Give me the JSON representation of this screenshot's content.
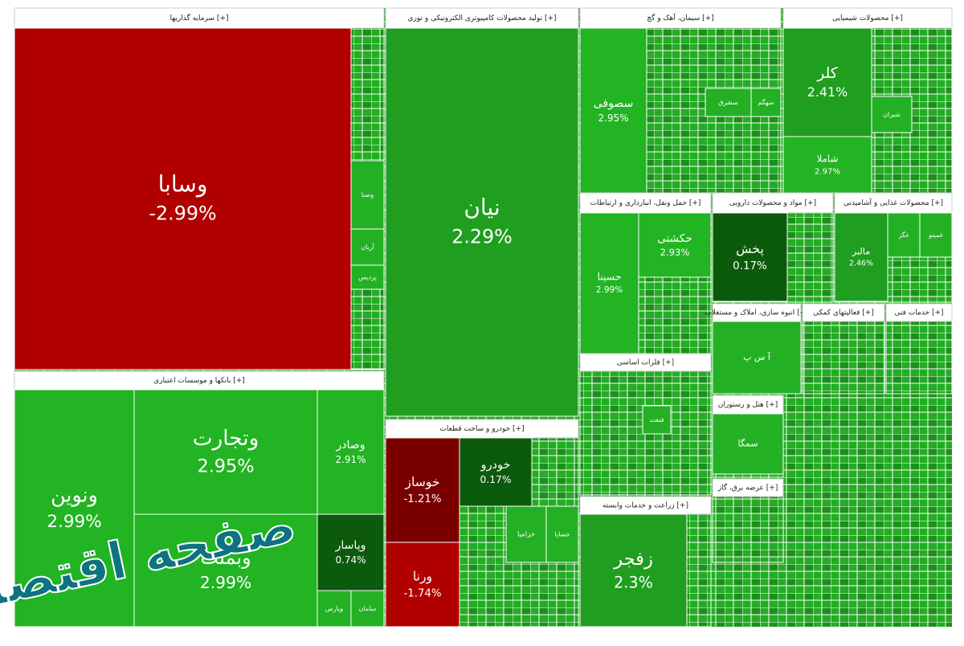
{
  "chart_data": {
    "type": "treemap",
    "watermark": "صفحه اقتصاد",
    "sectors": [
      {
        "name": "سرمایه گذاریها [+]",
        "tiles": [
          {
            "name": "وسابا",
            "value": -2.99,
            "value_label": "-2.99%"
          },
          {
            "name": "وصنا"
          },
          {
            "name": "آریان"
          },
          {
            "name": "پردیس"
          }
        ]
      },
      {
        "name": "بانکها و موسسات اعتباری [+]",
        "tiles": [
          {
            "name": "ونوین",
            "value": 2.99,
            "value_label": "2.99%"
          },
          {
            "name": "وتجارت",
            "value": 2.95,
            "value_label": "2.95%"
          },
          {
            "name": "وبملت",
            "value": 2.99,
            "value_label": "2.99%"
          },
          {
            "name": "وصادر",
            "value": 2.91,
            "value_label": "2.91%"
          },
          {
            "name": "وپاسار",
            "value": 0.74,
            "value_label": "0.74%"
          },
          {
            "name": "سامان"
          },
          {
            "name": "وپارس"
          }
        ]
      },
      {
        "name": "تولید محصولات کامپیوتری الکترونیکی و نوری [+]",
        "tiles": [
          {
            "name": "نیان",
            "value": 2.29,
            "value_label": "2.29%"
          }
        ]
      },
      {
        "name": "خودرو و ساخت قطعات [+]",
        "tiles": [
          {
            "name": "خوساز",
            "value": -1.21,
            "value_label": "-1.21%"
          },
          {
            "name": "ورنا",
            "value": -1.74,
            "value_label": "-1.74%"
          },
          {
            "name": "خودرو",
            "value": 0.17,
            "value_label": "0.17%"
          },
          {
            "name": "خزامیا"
          },
          {
            "name": "خساپا"
          }
        ]
      },
      {
        "name": "سیمان، آهک و گچ [+]",
        "tiles": [
          {
            "name": "سصوفی",
            "value": 2.95,
            "value_label": "2.95%"
          },
          {
            "name": "سشرق"
          },
          {
            "name": "سهگم"
          }
        ]
      },
      {
        "name": "محصولات شیمیایی [+]",
        "tiles": [
          {
            "name": "کلر",
            "value": 2.41,
            "value_label": "2.41%"
          },
          {
            "name": "شاملا",
            "value": 2.97,
            "value_label": "2.97%"
          },
          {
            "name": "شیران"
          }
        ]
      },
      {
        "name": "حمل ونقل، انبارداری و ارتباطات [+]",
        "tiles": [
          {
            "name": "حسینا",
            "value": 2.99,
            "value_label": "2.99%"
          },
          {
            "name": "حکشتی",
            "value": 2.93,
            "value_label": "2.93%"
          }
        ]
      },
      {
        "name": "مواد و محصولات دارویی [+]",
        "tiles": [
          {
            "name": "پخش",
            "value": 0.17,
            "value_label": "0.17%"
          }
        ]
      },
      {
        "name": "محصولات غذایی و آشامیدنی [+]",
        "tiles": [
          {
            "name": "مالبر",
            "value": 2.46,
            "value_label": "2.46%"
          },
          {
            "name": "غگز"
          },
          {
            "name": "غمینو"
          }
        ]
      },
      {
        "name": "فلزات اساسی [+]",
        "tiles": [
          {
            "name": "فنفت"
          }
        ]
      },
      {
        "name": "زراعت و خدمات وابسته [+]",
        "tiles": [
          {
            "name": "زفجر",
            "value": 2.3,
            "value_label": "2.3%"
          }
        ]
      },
      {
        "name": "انبوه سازی، املاک و مستغلات [+]",
        "tiles": [
          {
            "name": "آ س پ"
          }
        ]
      },
      {
        "name": "فعالیتهای کمکی [+]",
        "tiles": []
      },
      {
        "name": "خدمات فنی [+]",
        "tiles": []
      },
      {
        "name": "هتل و رستوران [+]",
        "tiles": [
          {
            "name": "سمگا"
          }
        ]
      },
      {
        "name": "عرضه برق، گاز [+]",
        "tiles": []
      }
    ]
  }
}
